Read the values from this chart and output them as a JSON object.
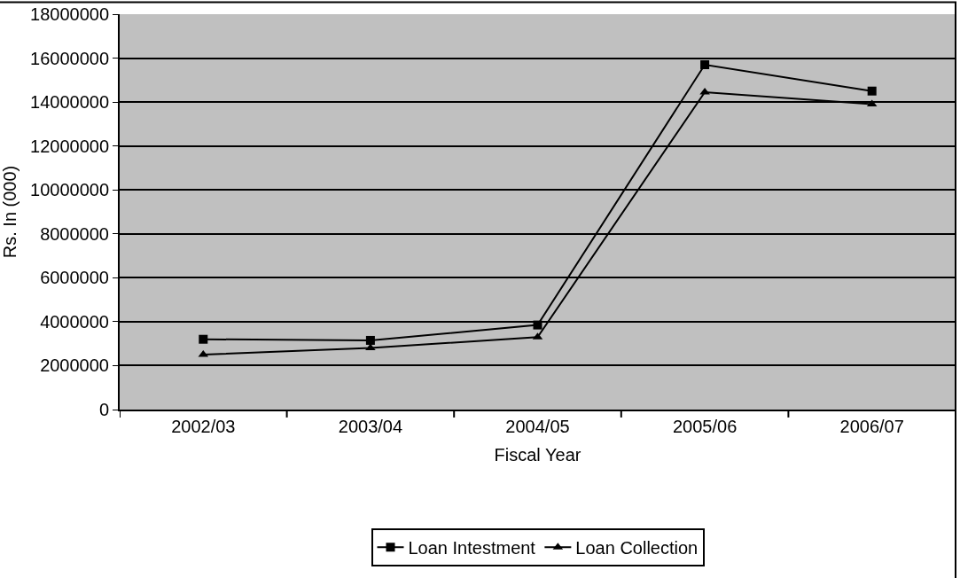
{
  "chart_data": {
    "type": "line",
    "xlabel": "Fiscal Year",
    "ylabel": "Rs. In (000)",
    "categories": [
      "2002/03",
      "2003/04",
      "2004/05",
      "2005/06",
      "2006/07"
    ],
    "series": [
      {
        "name": "Loan Intestment",
        "color": "#000000",
        "marker": "square",
        "values": [
          3200000,
          3150000,
          3850000,
          15700000,
          14500000
        ]
      },
      {
        "name": "Loan Collection",
        "color": "#000000",
        "marker": "triangle",
        "values": [
          2500000,
          2800000,
          3300000,
          14450000,
          13900000
        ]
      }
    ],
    "ylim": [
      0,
      18000000
    ],
    "yticks": [
      0,
      2000000,
      4000000,
      6000000,
      8000000,
      10000000,
      12000000,
      14000000,
      16000000,
      18000000
    ],
    "grid": "y",
    "legend": "bottom",
    "line_style": "solid"
  }
}
